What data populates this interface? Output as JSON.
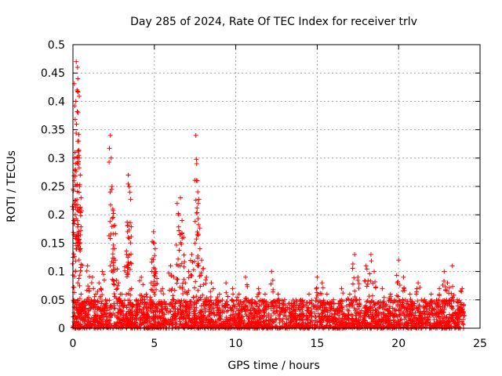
{
  "chart_data": {
    "type": "scatter",
    "title": "Day 285 of 2024, Rate Of TEC Index for receiver trlv",
    "xlabel": "GPS time / hours",
    "ylabel": "ROTI / TECUs",
    "xlim": [
      0,
      25
    ],
    "ylim": [
      0,
      0.5
    ],
    "x_ticks": [
      0,
      5,
      10,
      15,
      20,
      25
    ],
    "y_ticks": [
      0,
      0.05,
      0.1,
      0.15,
      0.2,
      0.25,
      0.3,
      0.35,
      0.4,
      0.45,
      0.5
    ],
    "grid": true,
    "marker": "+",
    "series": [
      {
        "name": "ROTI",
        "color": "#ff0000",
        "points": [
          [
            0.05,
            0.19
          ],
          [
            0.08,
            0.26
          ],
          [
            0.1,
            0.3
          ],
          [
            0.12,
            0.31
          ],
          [
            0.15,
            0.28
          ],
          [
            0.18,
            0.4
          ],
          [
            0.2,
            0.47
          ],
          [
            0.22,
            0.36
          ],
          [
            0.25,
            0.42
          ],
          [
            0.28,
            0.46
          ],
          [
            0.3,
            0.44
          ],
          [
            0.32,
            0.38
          ],
          [
            0.35,
            0.33
          ],
          [
            0.38,
            0.3
          ],
          [
            0.4,
            0.25
          ],
          [
            0.42,
            0.21
          ],
          [
            0.45,
            0.27
          ],
          [
            0.5,
            0.23
          ],
          [
            0.15,
            0.1
          ],
          [
            0.3,
            0.08
          ],
          [
            0.5,
            0.06
          ],
          [
            0.7,
            0.04
          ],
          [
            0.9,
            0.11
          ],
          [
            1.0,
            0.07
          ],
          [
            1.2,
            0.09
          ],
          [
            1.4,
            0.06
          ],
          [
            1.6,
            0.08
          ],
          [
            1.8,
            0.1
          ],
          [
            2.0,
            0.05
          ],
          [
            2.3,
            0.34
          ],
          [
            2.35,
            0.3
          ],
          [
            2.4,
            0.25
          ],
          [
            2.45,
            0.21
          ],
          [
            2.5,
            0.18
          ],
          [
            2.55,
            0.14
          ],
          [
            2.6,
            0.12
          ],
          [
            2.8,
            0.08
          ],
          [
            3.0,
            0.06
          ],
          [
            3.4,
            0.27
          ],
          [
            3.45,
            0.25
          ],
          [
            3.5,
            0.24
          ],
          [
            3.35,
            0.17
          ],
          [
            3.4,
            0.16
          ],
          [
            3.3,
            0.13
          ],
          [
            3.6,
            0.07
          ],
          [
            3.9,
            0.05
          ],
          [
            4.2,
            0.09
          ],
          [
            4.5,
            0.06
          ],
          [
            4.8,
            0.08
          ],
          [
            4.95,
            0.17
          ],
          [
            5.0,
            0.15
          ],
          [
            5.05,
            0.14
          ],
          [
            5.1,
            0.1
          ],
          [
            5.5,
            0.07
          ],
          [
            6.0,
            0.11
          ],
          [
            6.2,
            0.09
          ],
          [
            6.4,
            0.22
          ],
          [
            6.5,
            0.2
          ],
          [
            6.6,
            0.23
          ],
          [
            6.7,
            0.19
          ],
          [
            6.8,
            0.16
          ],
          [
            6.9,
            0.08
          ],
          [
            7.1,
            0.1
          ],
          [
            7.3,
            0.13
          ],
          [
            7.5,
            0.15
          ],
          [
            7.55,
            0.34
          ],
          [
            7.6,
            0.29
          ],
          [
            7.65,
            0.26
          ],
          [
            7.7,
            0.22
          ],
          [
            7.8,
            0.14
          ],
          [
            7.9,
            0.12
          ],
          [
            8.2,
            0.09
          ],
          [
            8.5,
            0.08
          ],
          [
            9.0,
            0.06
          ],
          [
            9.4,
            0.08
          ],
          [
            9.8,
            0.07
          ],
          [
            10.2,
            0.06
          ],
          [
            10.6,
            0.09
          ],
          [
            11.0,
            0.05
          ],
          [
            11.4,
            0.07
          ],
          [
            11.8,
            0.06
          ],
          [
            12.2,
            0.1
          ],
          [
            12.6,
            0.06
          ],
          [
            13.0,
            0.05
          ],
          [
            13.5,
            0.04
          ],
          [
            14.0,
            0.05
          ],
          [
            14.5,
            0.06
          ],
          [
            15.0,
            0.09
          ],
          [
            15.3,
            0.08
          ],
          [
            15.6,
            0.06
          ],
          [
            16.0,
            0.05
          ],
          [
            16.5,
            0.07
          ],
          [
            17.0,
            0.06
          ],
          [
            17.3,
            0.13
          ],
          [
            17.5,
            0.09
          ],
          [
            18.0,
            0.11
          ],
          [
            18.3,
            0.13
          ],
          [
            18.5,
            0.1
          ],
          [
            19.0,
            0.07
          ],
          [
            19.5,
            0.06
          ],
          [
            20.0,
            0.12
          ],
          [
            20.3,
            0.09
          ],
          [
            20.7,
            0.06
          ],
          [
            21.2,
            0.08
          ],
          [
            21.6,
            0.05
          ],
          [
            22.0,
            0.06
          ],
          [
            22.5,
            0.07
          ],
          [
            22.8,
            0.1
          ],
          [
            23.0,
            0.08
          ],
          [
            23.3,
            0.11
          ],
          [
            23.6,
            0.05
          ],
          [
            23.9,
            0.07
          ],
          [
            24.0,
            0.04
          ]
        ]
      }
    ],
    "baseline_band": {
      "description": "dense background cloud of ROTI values",
      "x_range": [
        0,
        24
      ],
      "y_range": [
        0.0,
        0.05
      ]
    }
  }
}
